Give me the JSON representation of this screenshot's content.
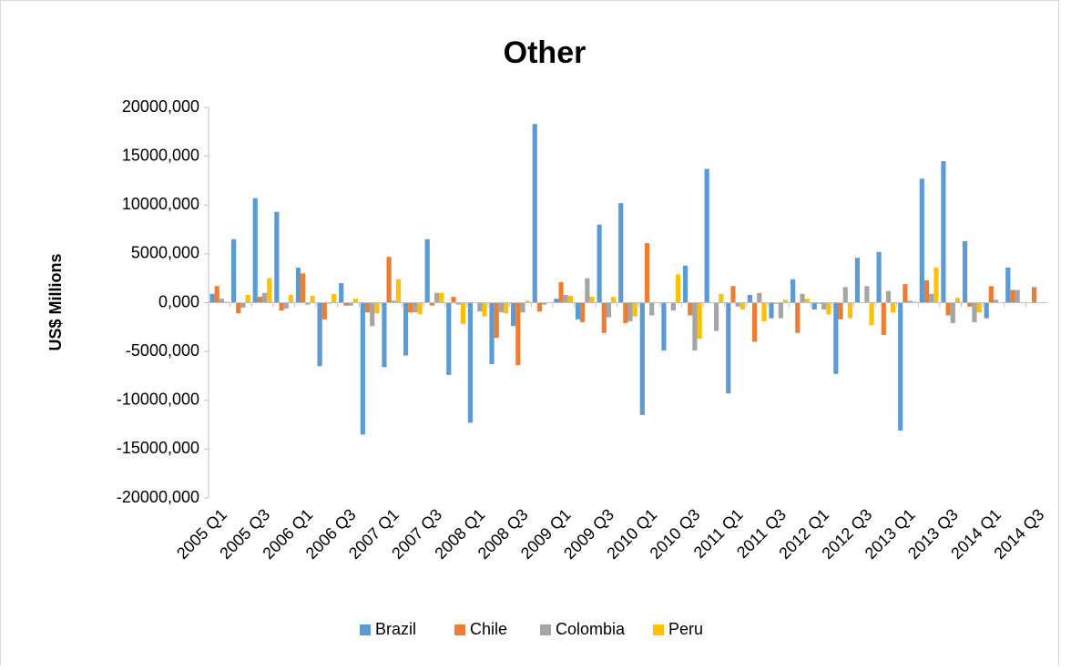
{
  "chart_data": {
    "type": "bar",
    "title": "Other",
    "y_label": "US$ Millions",
    "categories": [
      "2005 Q1",
      null,
      "2005 Q3",
      null,
      "2006 Q1",
      null,
      "2006 Q3",
      null,
      "2007 Q1",
      null,
      "2007 Q3",
      null,
      "2008 Q1",
      null,
      "2008 Q3",
      null,
      "2009 Q1",
      null,
      "2009 Q3",
      null,
      "2010 Q1",
      null,
      "2010 Q3",
      null,
      "2011 Q1",
      null,
      "2011 Q3",
      null,
      "2012 Q1",
      null,
      "2012 Q3",
      null,
      "2013 Q1",
      null,
      "2013 Q3",
      null,
      "2014 Q1",
      null,
      "2014 Q3"
    ],
    "series": [
      {
        "name": "Brazil",
        "color": "#5b9bd5",
        "values": [
          900,
          6500,
          10700,
          9300,
          3600,
          -6500,
          2000,
          -13500,
          -6600,
          -5400,
          6500,
          -7400,
          -12300,
          -6300,
          -2400,
          18300,
          400,
          -1700,
          8000,
          10200,
          -11500,
          -4900,
          3800,
          13700,
          -9300,
          800,
          -1600,
          2400,
          -700,
          -7300,
          4600,
          5200,
          -13100,
          12700,
          14500,
          6300,
          -1600,
          3600,
          0
        ]
      },
      {
        "name": "Chile",
        "color": "#ed7d31",
        "values": [
          1700,
          -1100,
          600,
          -800,
          3000,
          -1700,
          -300,
          -1000,
          4700,
          -1000,
          -300,
          600,
          0,
          -3600,
          -6400,
          -900,
          2100,
          -2000,
          -3100,
          -2100,
          6100,
          0,
          -1300,
          0,
          1700,
          -4000,
          -100,
          -3100,
          -100,
          -1700,
          0,
          -3300,
          1900,
          2300,
          -1300,
          -400,
          1700,
          1300,
          1600
        ]
      },
      {
        "name": "Colombia",
        "color": "#a5a5a5",
        "values": [
          400,
          -500,
          1000,
          -600,
          -200,
          -100,
          -300,
          -2400,
          200,
          -1000,
          1000,
          -200,
          -900,
          -1000,
          -1000,
          -200,
          800,
          2500,
          -1500,
          -1900,
          -1300,
          -800,
          -4900,
          -2900,
          -400,
          1000,
          -1600,
          900,
          -700,
          1600,
          1700,
          1200,
          200,
          900,
          -2100,
          -2000,
          300,
          1300,
          0
        ]
      },
      {
        "name": "Peru",
        "color": "#ffc000",
        "values": [
          100,
          800,
          2500,
          800,
          700,
          900,
          400,
          -1100,
          2400,
          -1200,
          1000,
          -2200,
          -1400,
          -1100,
          200,
          0,
          700,
          600,
          600,
          -1400,
          0,
          2900,
          -3700,
          900,
          -700,
          -1900,
          300,
          400,
          -1200,
          -1600,
          -2300,
          -1000,
          100,
          3600,
          500,
          -1000,
          0,
          0,
          0
        ]
      }
    ],
    "ylim": [
      -20000,
      20000
    ],
    "yticks": [
      {
        "value": -20000,
        "label": "-20000,000"
      },
      {
        "value": -15000,
        "label": "-15000,000"
      },
      {
        "value": -10000,
        "label": "-10000,000"
      },
      {
        "value": -5000,
        "label": "-5000,000"
      },
      {
        "value": 0,
        "label": "0,000"
      },
      {
        "value": 5000,
        "label": "5000,000"
      },
      {
        "value": 10000,
        "label": "10000,000"
      },
      {
        "value": 15000,
        "label": "15000,000"
      },
      {
        "value": 20000,
        "label": "20000,000"
      }
    ],
    "grid": false,
    "legend": "bottom"
  }
}
